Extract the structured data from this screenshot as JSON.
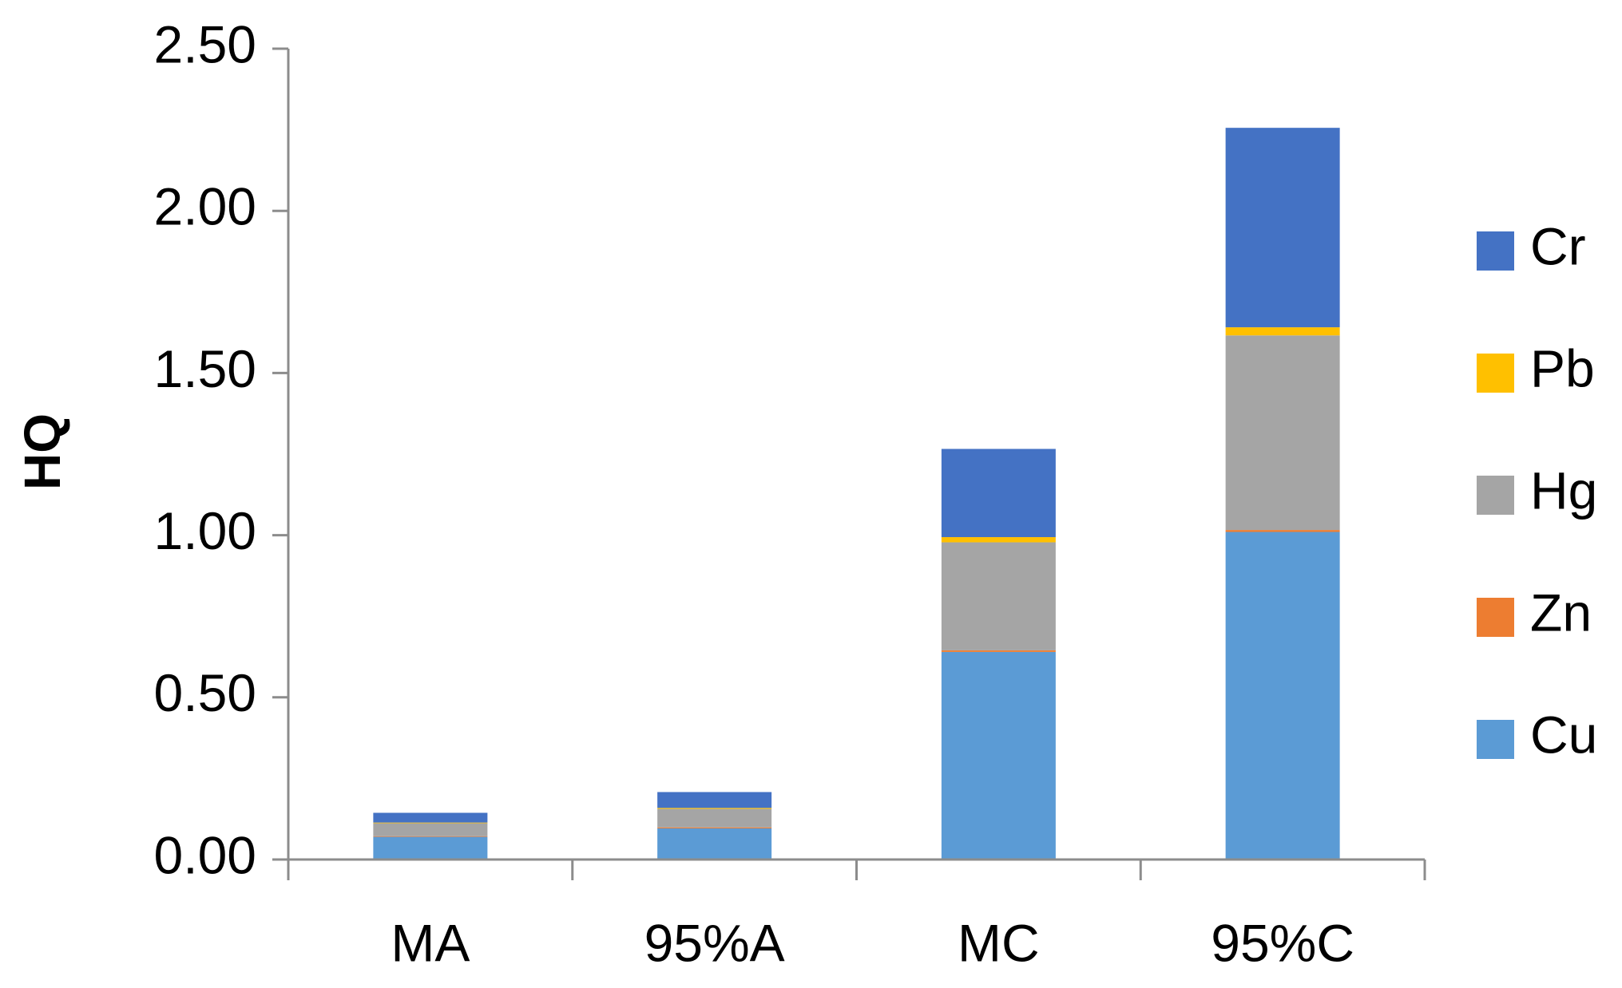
{
  "chart_data": {
    "type": "stacked_bar",
    "y_label": "HQ",
    "categories": [
      "MA",
      "95%A",
      "MC",
      "95%C"
    ],
    "series": [
      {
        "name": "Cu",
        "color": "#5b9bd5",
        "values": [
          0.07,
          0.096,
          0.64,
          1.01
        ]
      },
      {
        "name": "Zn",
        "color": "#ed7d31",
        "values": [
          0.002,
          0.003,
          0.005,
          0.006
        ]
      },
      {
        "name": "Hg",
        "color": "#a5a5a5",
        "values": [
          0.04,
          0.057,
          0.333,
          0.6
        ]
      },
      {
        "name": "Pb",
        "color": "#ffc000",
        "values": [
          0.002,
          0.003,
          0.016,
          0.025
        ]
      },
      {
        "name": "Cr",
        "color": "#4472c4",
        "values": [
          0.03,
          0.049,
          0.272,
          0.615
        ]
      }
    ],
    "ylim": [
      0,
      2.5
    ],
    "yticks": [
      {
        "value": 0,
        "label": "0.00"
      },
      {
        "value": 0.5,
        "label": "0.50"
      },
      {
        "value": 1,
        "label": "1.00"
      },
      {
        "value": 1.5,
        "label": "1.50"
      },
      {
        "value": 2,
        "label": "2.00"
      },
      {
        "value": 2.5,
        "label": "2.50"
      }
    ],
    "legend": "right"
  }
}
